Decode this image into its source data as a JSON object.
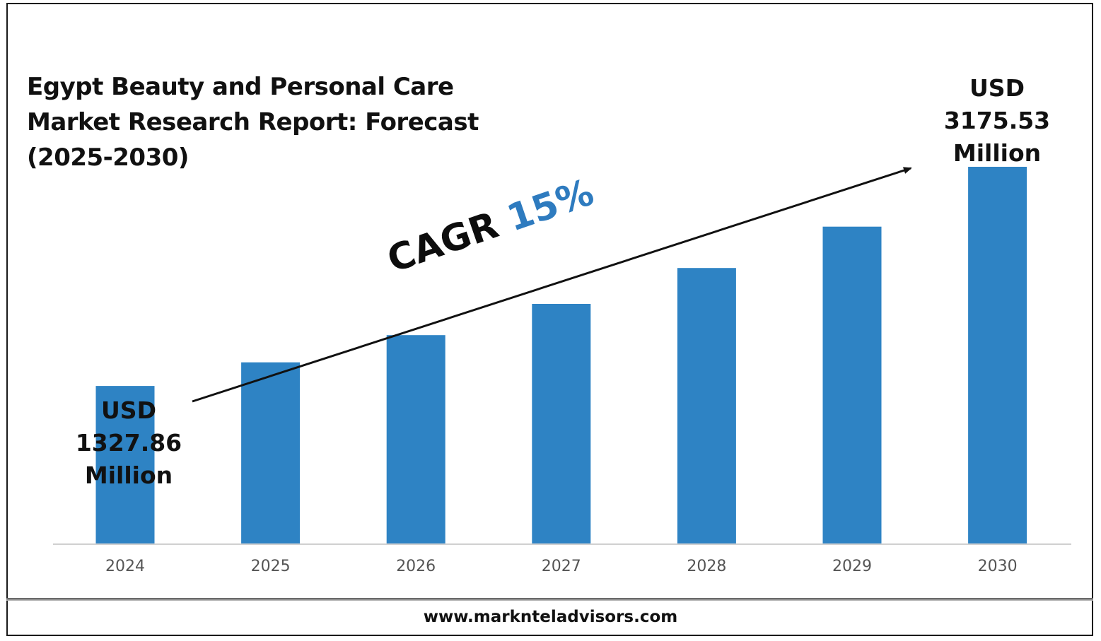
{
  "title": "Egypt Beauty and Personal Care Market Research Report: Forecast (2025-2030)",
  "callout_start": {
    "line1": "USD",
    "line2": "1327.86",
    "line3": "Million"
  },
  "callout_end": {
    "line1": "USD",
    "line2": "3175.53",
    "line3": "Million"
  },
  "cagr": {
    "label": "CAGR",
    "value": "15%"
  },
  "footer": {
    "url": "www.marknteladvisors.com"
  },
  "colors": {
    "bar": "#2e83c4",
    "cagr_value": "#2e7bbf"
  },
  "chart_data": {
    "type": "bar",
    "categories": [
      "2024",
      "2025",
      "2026",
      "2027",
      "2028",
      "2029",
      "2030"
    ],
    "values": [
      1327.86,
      1527.04,
      1756.1,
      2019.51,
      2322.44,
      2670.8,
      3175.53
    ],
    "title": "Egypt Beauty and Personal Care Market Research Report: Forecast (2025-2030)",
    "xlabel": "",
    "ylabel": "",
    "ylim": [
      0,
      3175.53
    ],
    "grid": false,
    "legend": "none",
    "annotations": [
      "USD 1327.86 Million",
      "USD 3175.53 Million",
      "CAGR 15%"
    ]
  }
}
